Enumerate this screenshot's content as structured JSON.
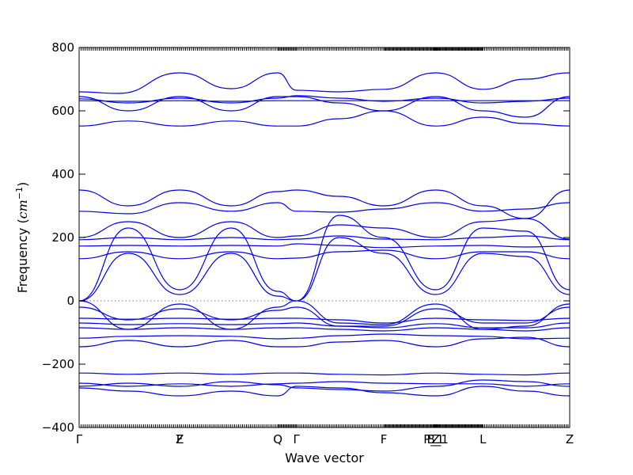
{
  "chart_data": {
    "type": "line",
    "title": "",
    "xlabel": "Wave vector",
    "ylabel_prefix": "Frequency (",
    "ylabel_unit_base": "cm",
    "ylabel_unit_exp": "−1",
    "ylabel_suffix": ")",
    "ylim": [
      -400,
      800
    ],
    "yticks": [
      -400,
      -200,
      0,
      200,
      400,
      600,
      800
    ],
    "ytick_labels": [
      "−400",
      "−200",
      "0",
      "200",
      "400",
      "600",
      "800"
    ],
    "xlim": [
      0,
      1
    ],
    "high_symmetry_points": [
      {
        "label": "Γ",
        "x": 0.0
      },
      {
        "label": "Z",
        "x": 0.205
      },
      {
        "label": "F",
        "x": 0.205
      },
      {
        "label": "Q",
        "x": 0.405
      },
      {
        "label": "Γ",
        "x": 0.443
      },
      {
        "label": "F",
        "x": 0.621
      },
      {
        "label": "P_1",
        "x": 0.723
      },
      {
        "label": "Z",
        "x": 0.727
      },
      {
        "label": "B_1",
        "x": 0.731
      },
      {
        "label": "L",
        "x": 0.823
      },
      {
        "label": "Z",
        "x": 1.0
      }
    ],
    "grid": false,
    "legend": "none",
    "line_color": "#0000ee",
    "bands": [
      {
        "name": "",
        "x": [
          0,
          0.08,
          0.205,
          0.31,
          0.405,
          0.443,
          0.53,
          0.621,
          0.727,
          0.823,
          0.91,
          1.0
        ],
        "y": [
          660,
          655,
          720,
          670,
          720,
          665,
          660,
          668,
          720,
          668,
          700,
          720
        ]
      },
      {
        "name": "",
        "x": [
          0,
          0.1,
          0.205,
          0.31,
          0.405,
          0.443,
          0.53,
          0.621,
          0.727,
          0.823,
          0.91,
          1.0
        ],
        "y": [
          645,
          600,
          645,
          600,
          645,
          645,
          625,
          600,
          645,
          600,
          580,
          645
        ]
      },
      {
        "name": "",
        "x": [
          0,
          0.1,
          0.205,
          0.31,
          0.405,
          0.443,
          0.53,
          0.621,
          0.727,
          0.823,
          0.91,
          1.0
        ],
        "y": [
          638,
          625,
          640,
          625,
          640,
          648,
          640,
          630,
          640,
          625,
          630,
          640
        ]
      },
      {
        "name": "",
        "x": [
          0,
          0.1,
          0.205,
          0.31,
          0.405,
          0.443,
          0.53,
          0.621,
          0.727,
          0.823,
          0.91,
          1.0
        ],
        "y": [
          632,
          630,
          632,
          630,
          632,
          632,
          632,
          632,
          632,
          632,
          632,
          632
        ]
      },
      {
        "name": "",
        "x": [
          0,
          0.1,
          0.205,
          0.31,
          0.405,
          0.443,
          0.53,
          0.621,
          0.727,
          0.823,
          0.91,
          1.0
        ],
        "y": [
          552,
          568,
          552,
          568,
          552,
          552,
          575,
          600,
          552,
          580,
          560,
          552
        ]
      },
      {
        "name": "",
        "x": [
          0,
          0.1,
          0.205,
          0.31,
          0.405,
          0.443,
          0.53,
          0.621,
          0.727,
          0.823,
          0.91,
          1.0
        ],
        "y": [
          350,
          300,
          350,
          300,
          345,
          350,
          330,
          300,
          350,
          300,
          260,
          350
        ]
      },
      {
        "name": "",
        "x": [
          0,
          0.1,
          0.205,
          0.31,
          0.405,
          0.443,
          0.53,
          0.621,
          0.727,
          0.823,
          0.91,
          1.0
        ],
        "y": [
          283,
          275,
          310,
          283,
          310,
          283,
          280,
          290,
          310,
          283,
          290,
          310
        ]
      },
      {
        "name": "",
        "x": [
          0,
          0.1,
          0.205,
          0.31,
          0.405,
          0.443,
          0.53,
          0.621,
          0.727,
          0.823,
          0.91,
          1.0
        ],
        "y": [
          200,
          250,
          200,
          250,
          200,
          205,
          240,
          230,
          200,
          250,
          260,
          195
        ]
      },
      {
        "name": "",
        "x": [
          0,
          0.1,
          0.205,
          0.31,
          0.405,
          0.443,
          0.53,
          0.621,
          0.727,
          0.823,
          0.91,
          1.0
        ],
        "y": [
          193,
          200,
          193,
          200,
          193,
          195,
          205,
          195,
          193,
          200,
          205,
          193
        ]
      },
      {
        "name": "",
        "x": [
          0,
          0.1,
          0.205,
          0.31,
          0.405,
          0.443,
          0.53,
          0.621,
          0.727,
          0.823,
          0.91,
          1.0
        ],
        "y": [
          173,
          175,
          173,
          175,
          173,
          180,
          175,
          168,
          173,
          175,
          170,
          173
        ]
      },
      {
        "name": "",
        "x": [
          0,
          0.1,
          0.205,
          0.31,
          0.405,
          0.443,
          0.53,
          0.621,
          0.727,
          0.823,
          0.91,
          1.0
        ],
        "y": [
          133,
          155,
          133,
          155,
          133,
          135,
          155,
          160,
          133,
          155,
          155,
          133
        ]
      },
      {
        "name": "",
        "x": [
          0,
          0.1,
          0.205,
          0.31,
          0.405,
          0.443,
          0.53,
          0.621,
          0.727,
          0.823,
          0.91,
          1.0
        ],
        "y": [
          0,
          230,
          35,
          230,
          30,
          0,
          270,
          200,
          35,
          230,
          220,
          35
        ]
      },
      {
        "name": "",
        "x": [
          0,
          0.1,
          0.205,
          0.31,
          0.405,
          0.443,
          0.53,
          0.621,
          0.727,
          0.823,
          0.91,
          1.0
        ],
        "y": [
          0,
          150,
          20,
          150,
          15,
          0,
          200,
          150,
          20,
          150,
          140,
          20
        ]
      },
      {
        "name": "",
        "x": [
          0,
          0.1,
          0.205,
          0.31,
          0.405,
          0.443,
          0.53,
          0.621,
          0.727,
          0.823,
          0.91,
          1.0
        ],
        "y": [
          0,
          -90,
          -10,
          -90,
          -20,
          0,
          -70,
          -75,
          -10,
          -90,
          -80,
          -10
        ]
      },
      {
        "name": "",
        "x": [
          0,
          0.1,
          0.205,
          0.31,
          0.405,
          0.443,
          0.53,
          0.621,
          0.727,
          0.823,
          0.91,
          1.0
        ],
        "y": [
          -20,
          -60,
          -25,
          -60,
          -30,
          -20,
          -80,
          -80,
          -25,
          -70,
          -70,
          -20
        ]
      },
      {
        "name": "",
        "x": [
          0,
          0.1,
          0.205,
          0.31,
          0.405,
          0.443,
          0.53,
          0.621,
          0.727,
          0.823,
          0.91,
          1.0
        ],
        "y": [
          -55,
          -58,
          -55,
          -58,
          -55,
          -55,
          -60,
          -70,
          -55,
          -60,
          -62,
          -55
        ]
      },
      {
        "name": "",
        "x": [
          0,
          0.1,
          0.205,
          0.31,
          0.405,
          0.443,
          0.53,
          0.621,
          0.727,
          0.823,
          0.91,
          1.0
        ],
        "y": [
          -70,
          -75,
          -72,
          -75,
          -72,
          -70,
          -80,
          -85,
          -72,
          -85,
          -85,
          -70
        ]
      },
      {
        "name": "",
        "x": [
          0,
          0.1,
          0.205,
          0.31,
          0.405,
          0.443,
          0.53,
          0.621,
          0.727,
          0.823,
          0.91,
          1.0
        ],
        "y": [
          -85,
          -90,
          -85,
          -90,
          -85,
          -85,
          -90,
          -95,
          -85,
          -90,
          -95,
          -85
        ]
      },
      {
        "name": "",
        "x": [
          0,
          0.1,
          0.205,
          0.31,
          0.405,
          0.443,
          0.53,
          0.621,
          0.727,
          0.823,
          0.91,
          1.0
        ],
        "y": [
          -118,
          -112,
          -110,
          -112,
          -120,
          -118,
          -110,
          -105,
          -110,
          -112,
          -120,
          -118
        ]
      },
      {
        "name": "",
        "x": [
          0,
          0.1,
          0.205,
          0.31,
          0.405,
          0.443,
          0.53,
          0.621,
          0.727,
          0.823,
          0.91,
          1.0
        ],
        "y": [
          -145,
          -125,
          -145,
          -125,
          -145,
          -145,
          -130,
          -125,
          -145,
          -120,
          -115,
          -145
        ]
      },
      {
        "name": "",
        "x": [
          0,
          0.1,
          0.205,
          0.31,
          0.405,
          0.443,
          0.53,
          0.621,
          0.727,
          0.823,
          0.91,
          1.0
        ],
        "y": [
          -228,
          -232,
          -228,
          -232,
          -228,
          -228,
          -232,
          -234,
          -228,
          -232,
          -234,
          -228
        ]
      },
      {
        "name": "",
        "x": [
          0,
          0.1,
          0.205,
          0.31,
          0.405,
          0.443,
          0.53,
          0.621,
          0.727,
          0.823,
          0.91,
          1.0
        ],
        "y": [
          -260,
          -270,
          -262,
          -270,
          -262,
          -260,
          -255,
          -260,
          -262,
          -262,
          -270,
          -262
        ]
      },
      {
        "name": "",
        "x": [
          0,
          0.1,
          0.205,
          0.31,
          0.405,
          0.443,
          0.53,
          0.621,
          0.727,
          0.823,
          0.91,
          1.0
        ],
        "y": [
          -270,
          -260,
          -270,
          -255,
          -265,
          -275,
          -280,
          -285,
          -270,
          -250,
          -255,
          -270
        ]
      },
      {
        "name": "",
        "x": [
          0,
          0.1,
          0.205,
          0.31,
          0.405,
          0.443,
          0.53,
          0.621,
          0.727,
          0.823,
          0.91,
          1.0
        ],
        "y": [
          -275,
          -285,
          -300,
          -285,
          -300,
          -270,
          -275,
          -290,
          -300,
          -270,
          -285,
          -300
        ]
      }
    ]
  }
}
